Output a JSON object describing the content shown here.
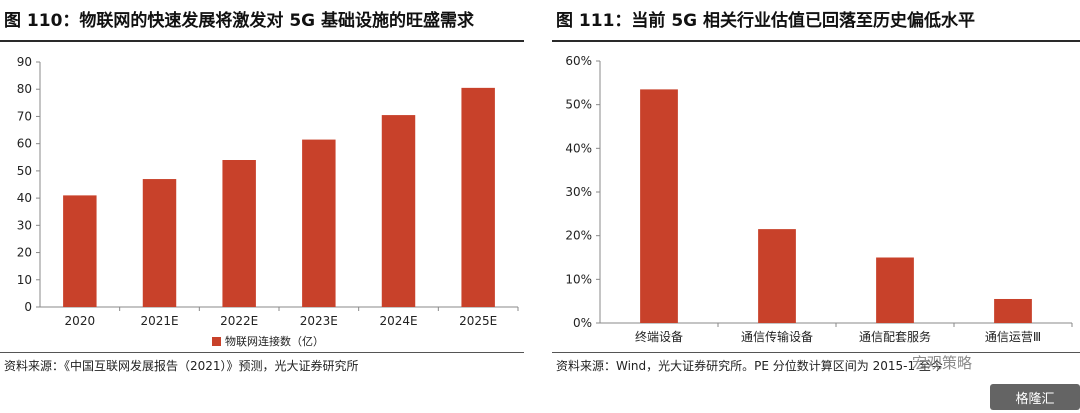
{
  "left": {
    "title": "图 110：物联网的快速发展将激发对 5G 基础设施的旺盛需求",
    "source": "资料来源：《中国互联网发展报告（2021）》预测，光大证券研究所"
  },
  "right": {
    "title": "图 111：当前 5G 相关行业估值已回落至历史偏低水平",
    "source": "资料来源：Wind，光大证券研究所。PE 分位数计算区间为 2015-1 至今"
  },
  "watermark": "宏观策略",
  "logo_text": "格隆汇",
  "colors": {
    "bar": "#c8412a",
    "axis": "#888888",
    "text": "#222222"
  },
  "chart_data": [
    {
      "type": "bar",
      "title": "",
      "xlabel": "",
      "ylabel": "",
      "categories": [
        "2020",
        "2021E",
        "2022E",
        "2023E",
        "2024E",
        "2025E"
      ],
      "series": [
        {
          "name": "物联网连接数（亿）",
          "values": [
            41,
            47,
            54,
            61.5,
            70.5,
            80.5
          ]
        }
      ],
      "ylim": [
        0,
        90
      ],
      "yticks": [
        "0",
        "10",
        "20",
        "30",
        "40",
        "50",
        "60",
        "70",
        "80",
        "90"
      ],
      "legend": "bottom",
      "grid": false
    },
    {
      "type": "bar",
      "title": "",
      "xlabel": "",
      "ylabel": "",
      "categories": [
        "终端设备",
        "通信传输设备",
        "通信配套服务",
        "通信运营Ⅲ"
      ],
      "series": [
        {
          "values": [
            53.5,
            21.5,
            15,
            5.5
          ]
        }
      ],
      "ylim": [
        0,
        60
      ],
      "yticks": [
        "0%",
        "10%",
        "20%",
        "30%",
        "40%",
        "50%",
        "60%"
      ],
      "legend": "none",
      "grid": false
    }
  ]
}
